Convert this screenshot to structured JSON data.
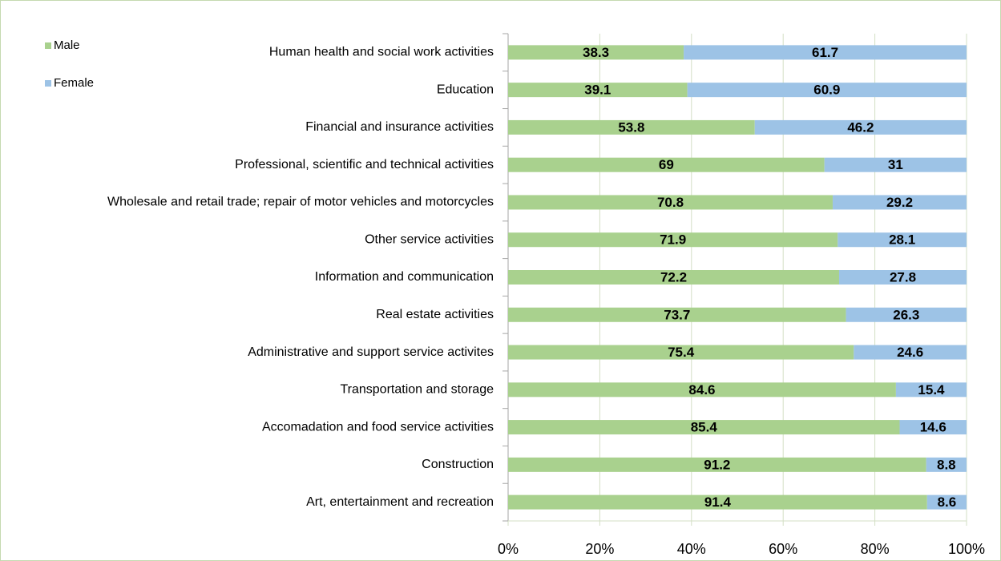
{
  "chart_data": {
    "type": "bar",
    "orientation": "horizontal",
    "stacked": true,
    "categories": [
      "Human health and social work activities",
      "Education",
      "Financial and insurance activities",
      "Professional, scientific and technical activities",
      "Wholesale and retail trade; repair of motor vehicles and motorcycles",
      "Other service activities",
      "Information and communication",
      "Real estate activities",
      "Administrative and support service activites",
      "Transportation and storage",
      "Accomadation and food service activities",
      "Construction",
      "Art, entertainment and recreation"
    ],
    "series": [
      {
        "name": "Male",
        "color": "#a9d18e",
        "values": [
          38.3,
          39.1,
          53.8,
          69,
          70.8,
          71.9,
          72.2,
          73.7,
          75.4,
          84.6,
          85.4,
          91.2,
          91.4
        ]
      },
      {
        "name": "Female",
        "color": "#9dc3e6",
        "values": [
          61.7,
          60.9,
          46.2,
          31,
          29.2,
          28.1,
          27.8,
          26.3,
          24.6,
          15.4,
          14.6,
          8.8,
          8.6
        ]
      }
    ],
    "xlim": [
      0,
      100
    ],
    "xticks": [
      {
        "value": 0,
        "label": "0%"
      },
      {
        "value": 20,
        "label": "20%"
      },
      {
        "value": 40,
        "label": "40%"
      },
      {
        "value": 60,
        "label": "60%"
      },
      {
        "value": 80,
        "label": "80%"
      },
      {
        "value": 100,
        "label": "100%"
      }
    ],
    "grid": true,
    "legend": "top-left"
  }
}
